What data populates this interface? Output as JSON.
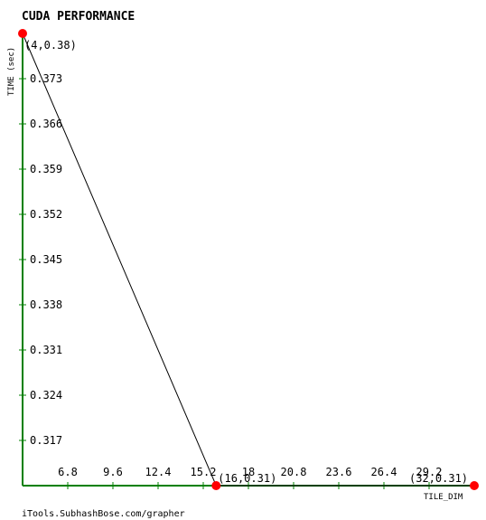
{
  "chart_data": {
    "type": "line",
    "title": "CUDA PERFORMANCE",
    "xlabel": "TILE_DIM",
    "ylabel": "TIME (sec)",
    "xlim": [
      4,
      32
    ],
    "ylim": [
      0.31,
      0.38
    ],
    "x_ticks": [
      "6.8",
      "9.6",
      "12.4",
      "15.2",
      "18",
      "20.8",
      "23.6",
      "26.4",
      "29.2"
    ],
    "y_ticks": [
      "0.373",
      "0.366",
      "0.359",
      "0.352",
      "0.345",
      "0.338",
      "0.331",
      "0.324",
      "0.317"
    ],
    "series": [
      {
        "points": [
          {
            "x": 4,
            "y": 0.38,
            "label": "(4,0.38)"
          },
          {
            "x": 16,
            "y": 0.31,
            "label": "(16,0.31)"
          },
          {
            "x": 32,
            "y": 0.31,
            "label": "(32,0.31)"
          }
        ]
      }
    ],
    "grid": false,
    "colors": {
      "axis": "#008000",
      "line": "#000000",
      "marker": "#ff0000"
    }
  },
  "footer": "iTools.SubhashBose.com/grapher"
}
